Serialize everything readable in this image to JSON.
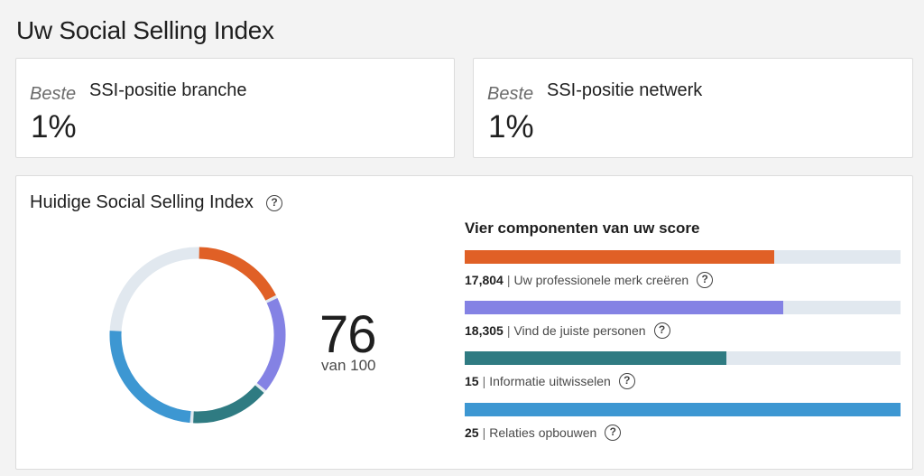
{
  "page": {
    "title": "Uw Social Selling Index"
  },
  "rank_cards": [
    {
      "qualifier": "Beste",
      "title": "SSI-positie branche",
      "value": "1%"
    },
    {
      "qualifier": "Beste",
      "title": "SSI-positie netwerk",
      "value": "1%"
    }
  ],
  "current": {
    "title": "Huidige Social Selling Index",
    "help_icon": "question-circle-icon",
    "score": "76",
    "score_of": "van 100"
  },
  "components": {
    "heading": "Vier componenten van uw score",
    "items": [
      {
        "value": "17,804",
        "label": "Uw professionele merk creëren",
        "fill_fraction": 0.71,
        "color": "#e06026"
      },
      {
        "value": "18,305",
        "label": "Vind de juiste personen",
        "fill_fraction": 0.73,
        "color": "#8482e4"
      },
      {
        "value": "15",
        "label": "Informatie uitwisselen",
        "fill_fraction": 0.6,
        "color": "#2f7b82"
      },
      {
        "value": "25",
        "label": "Relaties opbouwen",
        "fill_fraction": 1.0,
        "color": "#3d97d2"
      }
    ]
  },
  "donut": {
    "track_color": "#e1e8ef",
    "segments": [
      {
        "name": "Uw professionele merk creëren",
        "fraction": 0.178,
        "color": "#e06026"
      },
      {
        "name": "Vind de juiste personen",
        "fraction": 0.183,
        "color": "#8482e4"
      },
      {
        "name": "Informatie uitwisselen",
        "fraction": 0.15,
        "color": "#2f7b82"
      },
      {
        "name": "Relaties opbouwen",
        "fraction": 0.25,
        "color": "#3d97d2"
      }
    ]
  }
}
